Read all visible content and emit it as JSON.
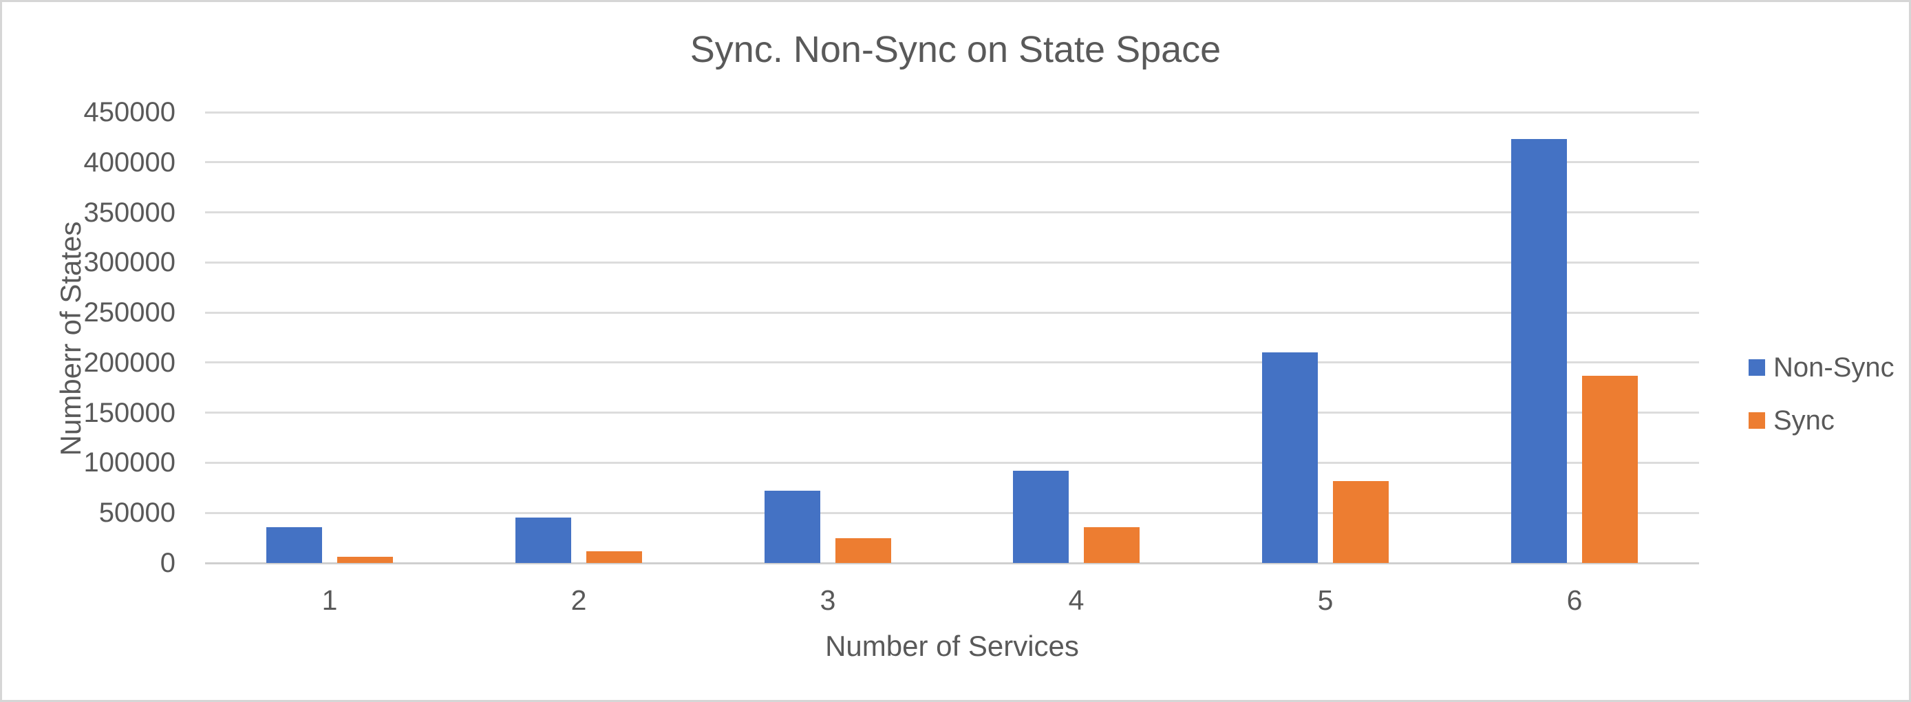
{
  "chart_data": {
    "type": "bar",
    "title": "Sync. Non-Sync on State Space",
    "xlabel": "Number of Services",
    "ylabel": "Numberr of States",
    "categories": [
      "1",
      "2",
      "3",
      "4",
      "5",
      "6"
    ],
    "series": [
      {
        "name": "Non-Sync",
        "color": "#4472C4",
        "values": [
          36000,
          45000,
          72000,
          92000,
          210000,
          423000
        ]
      },
      {
        "name": "Sync",
        "color": "#ED7D31",
        "values": [
          6000,
          12000,
          25000,
          36000,
          82000,
          187000
        ]
      }
    ],
    "ylim": [
      0,
      450000
    ],
    "ytick_step": 50000,
    "yticks": [
      "450000",
      "400000",
      "350000",
      "300000",
      "250000",
      "200000",
      "150000",
      "100000",
      "50000",
      "0"
    ],
    "grid": true,
    "legend_position": "right"
  },
  "colors": {
    "text": "#595959",
    "gridline": "#DCDCDC",
    "axis_line": "#CFCFCF",
    "background": "#FFFFFF",
    "frame_border": "#D6D6D6"
  }
}
